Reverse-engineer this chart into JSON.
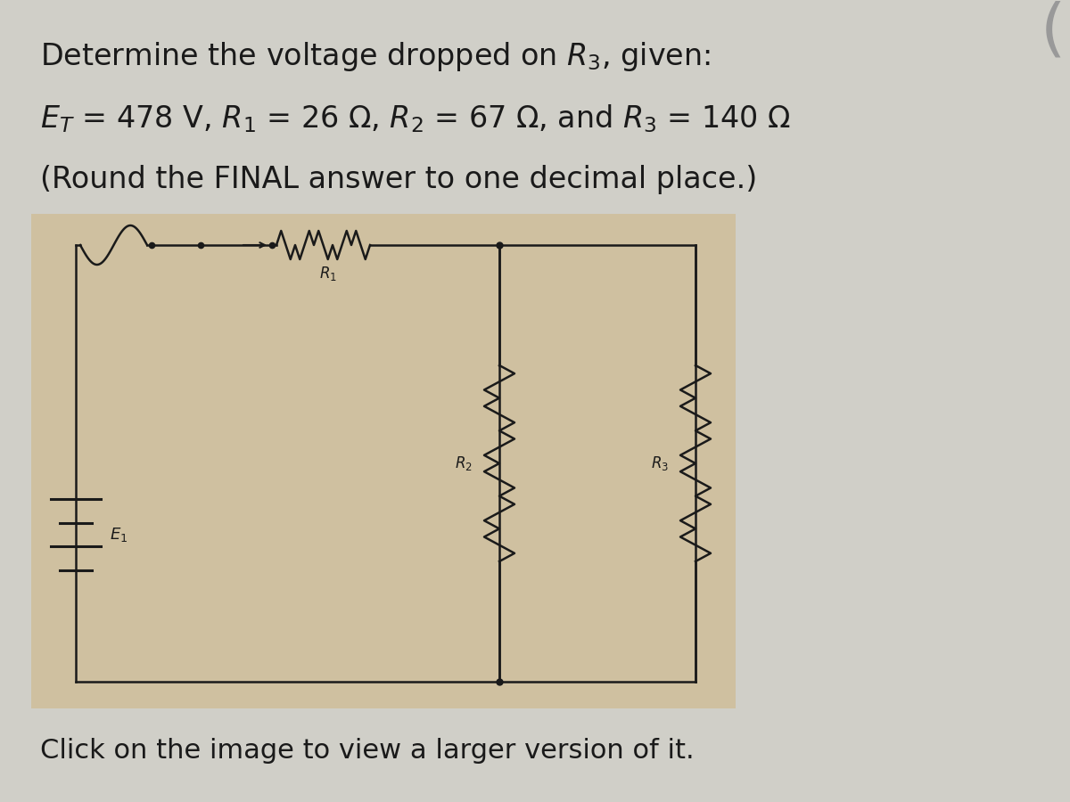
{
  "bg_color": "#d0cfc8",
  "text_color": "#1a1a1a",
  "line1": "Determine the voltage dropped on $R_3$, given:",
  "line2_parts": [
    "$E_T$",
    " = 478 V, ",
    "$R_1$",
    " = 26 Ω, ",
    "$R_2$",
    " = 67 Ω, and ",
    "$R_3$",
    " = 140 Ω"
  ],
  "line3": "(Round the FINAL answer to one decimal place.)",
  "line4": "Click on the image to view a larger version of it.",
  "font_size_main": 24,
  "font_size_click": 22,
  "circuit_color": "#1a1a1a",
  "circuit_bg": "#cfc0a0",
  "paren_color": "#999999"
}
